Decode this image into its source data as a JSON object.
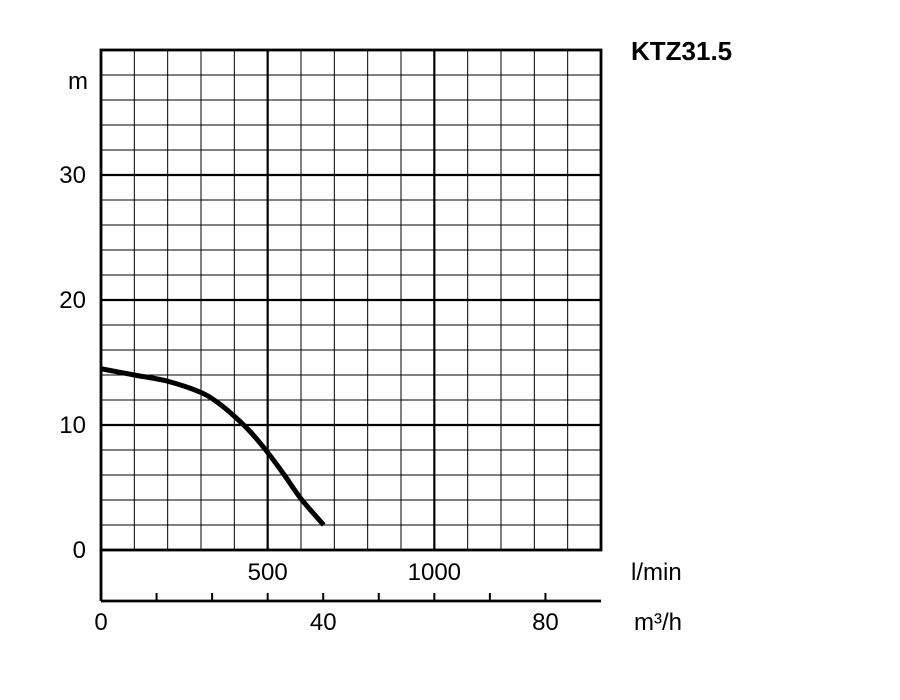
{
  "chart_data": {
    "type": "line",
    "title": "KTZ31.5",
    "ylabel": "m",
    "xlabel_primary": "l/min",
    "xlabel_secondary": "m³/h",
    "ylim": [
      0,
      40
    ],
    "xlim_lmin": [
      0,
      1500
    ],
    "xlim_m3h": [
      0,
      90
    ],
    "y_ticks": [
      "0",
      "10",
      "20",
      "30"
    ],
    "x_ticks_lmin": [
      "500",
      "1000"
    ],
    "x_ticks_m3h": [
      "0",
      "40",
      "80"
    ],
    "grid": true,
    "series": [
      {
        "x_lmin": [
          0,
          100,
          200,
          300,
          350,
          400,
          450,
          500,
          550,
          600,
          668
        ],
        "y": [
          14.5,
          14.0,
          13.5,
          12.6,
          11.8,
          10.7,
          9.4,
          7.8,
          6.0,
          4.1,
          2.0
        ]
      }
    ],
    "line_color": "#000000",
    "grid_color": "#000000"
  }
}
